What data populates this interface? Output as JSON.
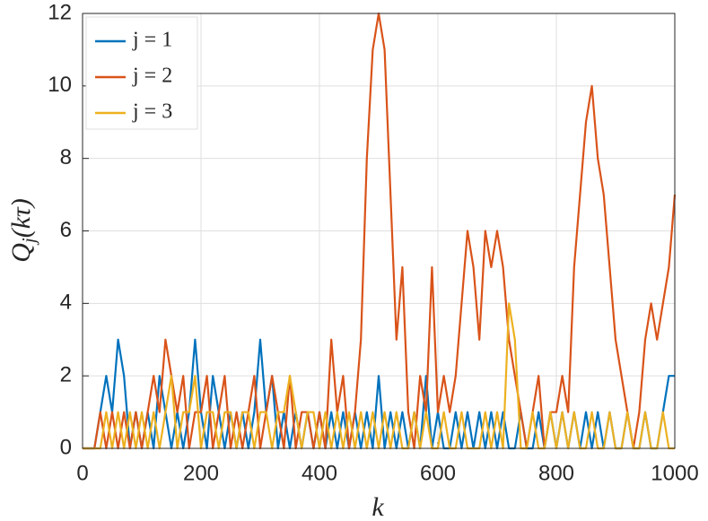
{
  "chart_data": {
    "type": "line",
    "xlabel": "k",
    "ylabel": {
      "base": "Q",
      "sub": "j",
      "rest": "(kτ)"
    },
    "x": [
      0,
      10,
      20,
      30,
      40,
      50,
      60,
      70,
      80,
      90,
      100,
      110,
      120,
      130,
      140,
      150,
      160,
      170,
      180,
      190,
      200,
      210,
      220,
      230,
      240,
      250,
      260,
      270,
      280,
      290,
      300,
      310,
      320,
      330,
      340,
      350,
      360,
      370,
      380,
      390,
      400,
      410,
      420,
      430,
      440,
      450,
      460,
      470,
      480,
      490,
      500,
      510,
      520,
      530,
      540,
      550,
      560,
      570,
      580,
      590,
      600,
      610,
      620,
      630,
      640,
      650,
      660,
      670,
      680,
      690,
      700,
      710,
      720,
      730,
      740,
      750,
      760,
      770,
      780,
      790,
      800,
      810,
      820,
      830,
      840,
      850,
      860,
      870,
      880,
      890,
      900,
      910,
      920,
      930,
      940,
      950,
      960,
      970,
      980,
      990,
      1000
    ],
    "series": [
      {
        "name": "j = 1",
        "color": "#0072BD",
        "values": [
          0,
          0,
          0,
          1,
          2,
          1,
          3,
          2,
          0,
          1,
          0,
          1,
          0,
          2,
          1,
          0,
          1,
          0,
          1,
          3,
          1,
          0,
          2,
          1,
          0,
          1,
          0,
          1,
          0,
          1,
          3,
          1,
          2,
          0,
          1,
          0,
          1,
          0,
          1,
          0,
          1,
          0,
          1,
          0,
          1,
          0,
          1,
          0,
          1,
          0,
          2,
          0,
          1,
          0,
          1,
          0,
          1,
          0,
          2,
          0,
          1,
          0,
          0,
          1,
          0,
          1,
          0,
          1,
          0,
          1,
          0,
          1,
          0,
          0,
          1,
          0,
          0,
          1,
          0,
          1,
          0,
          1,
          0,
          1,
          0,
          1,
          0,
          1,
          0,
          1,
          0,
          0,
          1,
          0,
          0,
          1,
          0,
          0,
          1,
          2,
          2
        ]
      },
      {
        "name": "j = 2",
        "color": "#D95319",
        "values": [
          0,
          0,
          0,
          1,
          0,
          1,
          0,
          1,
          0,
          1,
          0,
          1,
          2,
          1,
          3,
          2,
          1,
          2,
          0,
          1,
          1,
          2,
          0,
          1,
          2,
          0,
          1,
          0,
          1,
          2,
          0,
          1,
          2,
          1,
          0,
          2,
          0,
          1,
          1,
          0,
          1,
          0,
          3,
          1,
          2,
          0,
          1,
          3,
          8,
          11,
          12,
          11,
          7,
          3,
          5,
          1,
          0,
          2,
          1,
          5,
          1,
          2,
          1,
          2,
          4,
          6,
          5,
          3,
          6,
          5,
          6,
          5,
          3,
          2,
          1,
          0,
          1,
          2,
          0,
          1,
          1,
          2,
          1,
          5,
          7,
          9,
          10,
          8,
          7,
          5,
          3,
          2,
          1,
          0,
          1,
          3,
          4,
          3,
          4,
          5,
          7
        ]
      },
      {
        "name": "j = 3",
        "color": "#EDB120",
        "values": [
          0,
          0,
          0,
          0,
          1,
          0,
          1,
          0,
          1,
          0,
          1,
          0,
          1,
          0,
          1,
          2,
          0,
          1,
          1,
          2,
          0,
          1,
          1,
          0,
          1,
          1,
          0,
          1,
          1,
          0,
          1,
          1,
          0,
          1,
          1,
          2,
          1,
          0,
          1,
          1,
          0,
          1,
          0,
          1,
          0,
          1,
          0,
          1,
          0,
          1,
          0,
          1,
          0,
          1,
          0,
          0,
          1,
          0,
          1,
          0,
          0,
          1,
          0,
          0,
          1,
          0,
          0,
          0,
          1,
          0,
          1,
          0,
          4,
          3,
          0,
          0,
          1,
          0,
          0,
          1,
          0,
          1,
          0,
          1,
          0,
          0,
          1,
          0,
          0,
          1,
          0,
          0,
          1,
          0,
          0,
          1,
          0,
          0,
          1,
          0,
          0
        ]
      }
    ],
    "xlim": [
      0,
      1000
    ],
    "xticks": [
      0,
      200,
      400,
      600,
      800,
      1000
    ],
    "ylim": [
      0,
      12
    ],
    "yticks": [
      0,
      2,
      4,
      6,
      8,
      10,
      12
    ],
    "grid": true,
    "legend": "upper left"
  }
}
